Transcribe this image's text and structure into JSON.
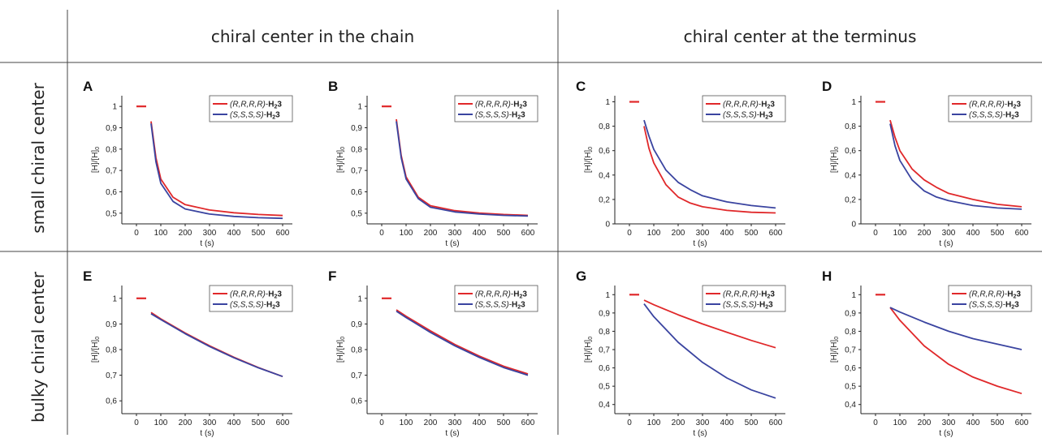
{
  "table": {
    "column_headers": [
      "chiral center in the chain",
      "chiral center at the terminus"
    ],
    "row_headers": [
      "small chiral center",
      "bulky chiral center"
    ]
  },
  "colors": {
    "RRRR": "#e0282a",
    "SSSS": "#3a44a0"
  },
  "chart_data": [
    {
      "panel": "A",
      "type": "line",
      "xlabel": "t (s)",
      "ylabel": "[H]/[H]0",
      "xlim": [
        -60,
        640
      ],
      "ylim": [
        0.45,
        1.05
      ],
      "xticks": [
        0,
        100,
        200,
        300,
        400,
        500,
        600
      ],
      "yticks": [
        0.5,
        0.6,
        0.7,
        0.8,
        0.9,
        1
      ],
      "ytick_labels": [
        "0,5",
        "0,6",
        "0,7",
        "0,8",
        "0,9",
        "1"
      ],
      "baseline": {
        "x": [
          0,
          40
        ],
        "y": 1.0
      },
      "series": [
        {
          "name": "(R,R,R,R)-H23",
          "x": [
            60,
            80,
            100,
            150,
            200,
            300,
            400,
            500,
            600
          ],
          "y": [
            0.93,
            0.76,
            0.66,
            0.575,
            0.54,
            0.515,
            0.502,
            0.494,
            0.489
          ]
        },
        {
          "name": "(S,S,S,S)-H23",
          "x": [
            60,
            80,
            100,
            150,
            200,
            300,
            400,
            500,
            600
          ],
          "y": [
            0.92,
            0.74,
            0.64,
            0.555,
            0.52,
            0.496,
            0.485,
            0.479,
            0.476
          ]
        }
      ]
    },
    {
      "panel": "B",
      "type": "line",
      "xlabel": "t (s)",
      "ylabel": "[H]/[H]0",
      "xlim": [
        -60,
        640
      ],
      "ylim": [
        0.45,
        1.05
      ],
      "xticks": [
        0,
        100,
        200,
        300,
        400,
        500,
        600
      ],
      "yticks": [
        0.5,
        0.6,
        0.7,
        0.8,
        0.9,
        1
      ],
      "ytick_labels": [
        "0,5",
        "0,6",
        "0,7",
        "0,8",
        "0,9",
        "1"
      ],
      "baseline": {
        "x": [
          0,
          40
        ],
        "y": 1.0
      },
      "series": [
        {
          "name": "(R,R,R,R)-H23",
          "x": [
            60,
            80,
            100,
            150,
            200,
            300,
            400,
            500,
            600
          ],
          "y": [
            0.94,
            0.77,
            0.67,
            0.575,
            0.535,
            0.512,
            0.501,
            0.494,
            0.49
          ]
        },
        {
          "name": "(S,S,S,S)-H23",
          "x": [
            60,
            80,
            100,
            150,
            200,
            300,
            400,
            500,
            600
          ],
          "y": [
            0.93,
            0.76,
            0.66,
            0.568,
            0.528,
            0.506,
            0.496,
            0.49,
            0.487
          ]
        }
      ]
    },
    {
      "panel": "C",
      "type": "line",
      "xlabel": "t (s)",
      "ylabel": "[H]/[H]0",
      "xlim": [
        -60,
        640
      ],
      "ylim": [
        0,
        1.05
      ],
      "xticks": [
        0,
        100,
        200,
        300,
        400,
        500,
        600
      ],
      "yticks": [
        0,
        0.2,
        0.4,
        0.6,
        0.8,
        1
      ],
      "ytick_labels": [
        "0",
        "0,2",
        "0,4",
        "0,6",
        "0,8",
        "1"
      ],
      "baseline": {
        "x": [
          0,
          40
        ],
        "y": 1.0
      },
      "series": [
        {
          "name": "(R,R,R,R)-H23",
          "x": [
            60,
            80,
            100,
            150,
            200,
            250,
            300,
            400,
            500,
            600
          ],
          "y": [
            0.8,
            0.62,
            0.5,
            0.32,
            0.22,
            0.17,
            0.14,
            0.11,
            0.095,
            0.09
          ]
        },
        {
          "name": "(S,S,S,S)-H23",
          "x": [
            60,
            80,
            100,
            150,
            200,
            250,
            300,
            400,
            500,
            600
          ],
          "y": [
            0.85,
            0.72,
            0.61,
            0.44,
            0.34,
            0.28,
            0.23,
            0.18,
            0.15,
            0.13
          ]
        }
      ]
    },
    {
      "panel": "D",
      "type": "line",
      "xlabel": "t (s)",
      "ylabel": "[H]/[H]0",
      "xlim": [
        -60,
        640
      ],
      "ylim": [
        0,
        1.05
      ],
      "xticks": [
        0,
        100,
        200,
        300,
        400,
        500,
        600
      ],
      "yticks": [
        0,
        0.2,
        0.4,
        0.6,
        0.8,
        1
      ],
      "ytick_labels": [
        "0",
        "0,2",
        "0,4",
        "0,6",
        "0,8",
        "1"
      ],
      "baseline": {
        "x": [
          0,
          40
        ],
        "y": 1.0
      },
      "series": [
        {
          "name": "(R,R,R,R)-H23",
          "x": [
            60,
            80,
            100,
            150,
            200,
            250,
            300,
            400,
            500,
            600
          ],
          "y": [
            0.85,
            0.71,
            0.6,
            0.45,
            0.36,
            0.3,
            0.25,
            0.2,
            0.16,
            0.14
          ]
        },
        {
          "name": "(S,S,S,S)-H23",
          "x": [
            60,
            80,
            100,
            150,
            200,
            250,
            300,
            400,
            500,
            600
          ],
          "y": [
            0.82,
            0.64,
            0.52,
            0.36,
            0.27,
            0.22,
            0.19,
            0.15,
            0.13,
            0.12
          ]
        }
      ]
    },
    {
      "panel": "E",
      "type": "line",
      "xlabel": "t (s)",
      "ylabel": "[H]/[H]0",
      "xlim": [
        -60,
        640
      ],
      "ylim": [
        0.55,
        1.05
      ],
      "xticks": [
        0,
        100,
        200,
        300,
        400,
        500,
        600
      ],
      "yticks": [
        0.6,
        0.7,
        0.8,
        0.9,
        1
      ],
      "ytick_labels": [
        "0,6",
        "0,7",
        "0,8",
        "0,9",
        "1"
      ],
      "baseline": {
        "x": [
          0,
          40
        ],
        "y": 1.0
      },
      "series": [
        {
          "name": "(R,R,R,R)-H23",
          "x": [
            60,
            100,
            200,
            300,
            400,
            500,
            600
          ],
          "y": [
            0.945,
            0.92,
            0.865,
            0.815,
            0.77,
            0.73,
            0.695
          ]
        },
        {
          "name": "(S,S,S,S)-H23",
          "x": [
            60,
            100,
            200,
            300,
            400,
            500,
            600
          ],
          "y": [
            0.94,
            0.917,
            0.862,
            0.812,
            0.768,
            0.729,
            0.695
          ]
        }
      ]
    },
    {
      "panel": "F",
      "type": "line",
      "xlabel": "t (s)",
      "ylabel": "[H]/[H]0",
      "xlim": [
        -60,
        640
      ],
      "ylim": [
        0.55,
        1.05
      ],
      "xticks": [
        0,
        100,
        200,
        300,
        400,
        500,
        600
      ],
      "yticks": [
        0.6,
        0.7,
        0.8,
        0.9,
        1
      ],
      "ytick_labels": [
        "0,6",
        "0,7",
        "0,8",
        "0,9",
        "1"
      ],
      "baseline": {
        "x": [
          0,
          40
        ],
        "y": 1.0
      },
      "series": [
        {
          "name": "(R,R,R,R)-H23",
          "x": [
            60,
            100,
            200,
            300,
            400,
            500,
            600
          ],
          "y": [
            0.955,
            0.93,
            0.873,
            0.82,
            0.775,
            0.735,
            0.705
          ]
        },
        {
          "name": "(S,S,S,S)-H23",
          "x": [
            60,
            100,
            200,
            300,
            400,
            500,
            600
          ],
          "y": [
            0.95,
            0.925,
            0.867,
            0.815,
            0.77,
            0.73,
            0.7
          ]
        }
      ]
    },
    {
      "panel": "G",
      "type": "line",
      "xlabel": "t (s)",
      "ylabel": "[H]/[H]0",
      "xlim": [
        -60,
        640
      ],
      "ylim": [
        0.35,
        1.05
      ],
      "xticks": [
        0,
        100,
        200,
        300,
        400,
        500,
        600
      ],
      "yticks": [
        0.4,
        0.5,
        0.6,
        0.7,
        0.8,
        0.9,
        1
      ],
      "ytick_labels": [
        "0,4",
        "0,5",
        "0,6",
        "0,7",
        "0,8",
        "0,9",
        "1"
      ],
      "baseline": {
        "x": [
          0,
          40
        ],
        "y": 1.0
      },
      "series": [
        {
          "name": "(R,R,R,R)-H23",
          "x": [
            60,
            100,
            200,
            300,
            400,
            500,
            600
          ],
          "y": [
            0.97,
            0.945,
            0.89,
            0.84,
            0.795,
            0.75,
            0.71
          ]
        },
        {
          "name": "(S,S,S,S)-H23",
          "x": [
            60,
            100,
            200,
            300,
            400,
            500,
            600
          ],
          "y": [
            0.95,
            0.88,
            0.74,
            0.63,
            0.545,
            0.48,
            0.435
          ]
        }
      ]
    },
    {
      "panel": "H",
      "type": "line",
      "xlabel": "t (s)",
      "ylabel": "[H]/[H]0",
      "xlim": [
        -60,
        640
      ],
      "ylim": [
        0.35,
        1.05
      ],
      "xticks": [
        0,
        100,
        200,
        300,
        400,
        500,
        600
      ],
      "yticks": [
        0.4,
        0.5,
        0.6,
        0.7,
        0.8,
        0.9,
        1
      ],
      "ytick_labels": [
        "0,4",
        "0,5",
        "0,6",
        "0,7",
        "0,8",
        "0,9",
        "1"
      ],
      "baseline": {
        "x": [
          0,
          40
        ],
        "y": 1.0
      },
      "series": [
        {
          "name": "(R,R,R,R)-H23",
          "x": [
            60,
            100,
            200,
            300,
            400,
            500,
            600
          ],
          "y": [
            0.93,
            0.86,
            0.72,
            0.62,
            0.55,
            0.5,
            0.46
          ]
        },
        {
          "name": "(S,S,S,S)-H23",
          "x": [
            60,
            100,
            200,
            300,
            400,
            500,
            600
          ],
          "y": [
            0.93,
            0.905,
            0.85,
            0.8,
            0.76,
            0.73,
            0.7
          ]
        }
      ]
    }
  ]
}
